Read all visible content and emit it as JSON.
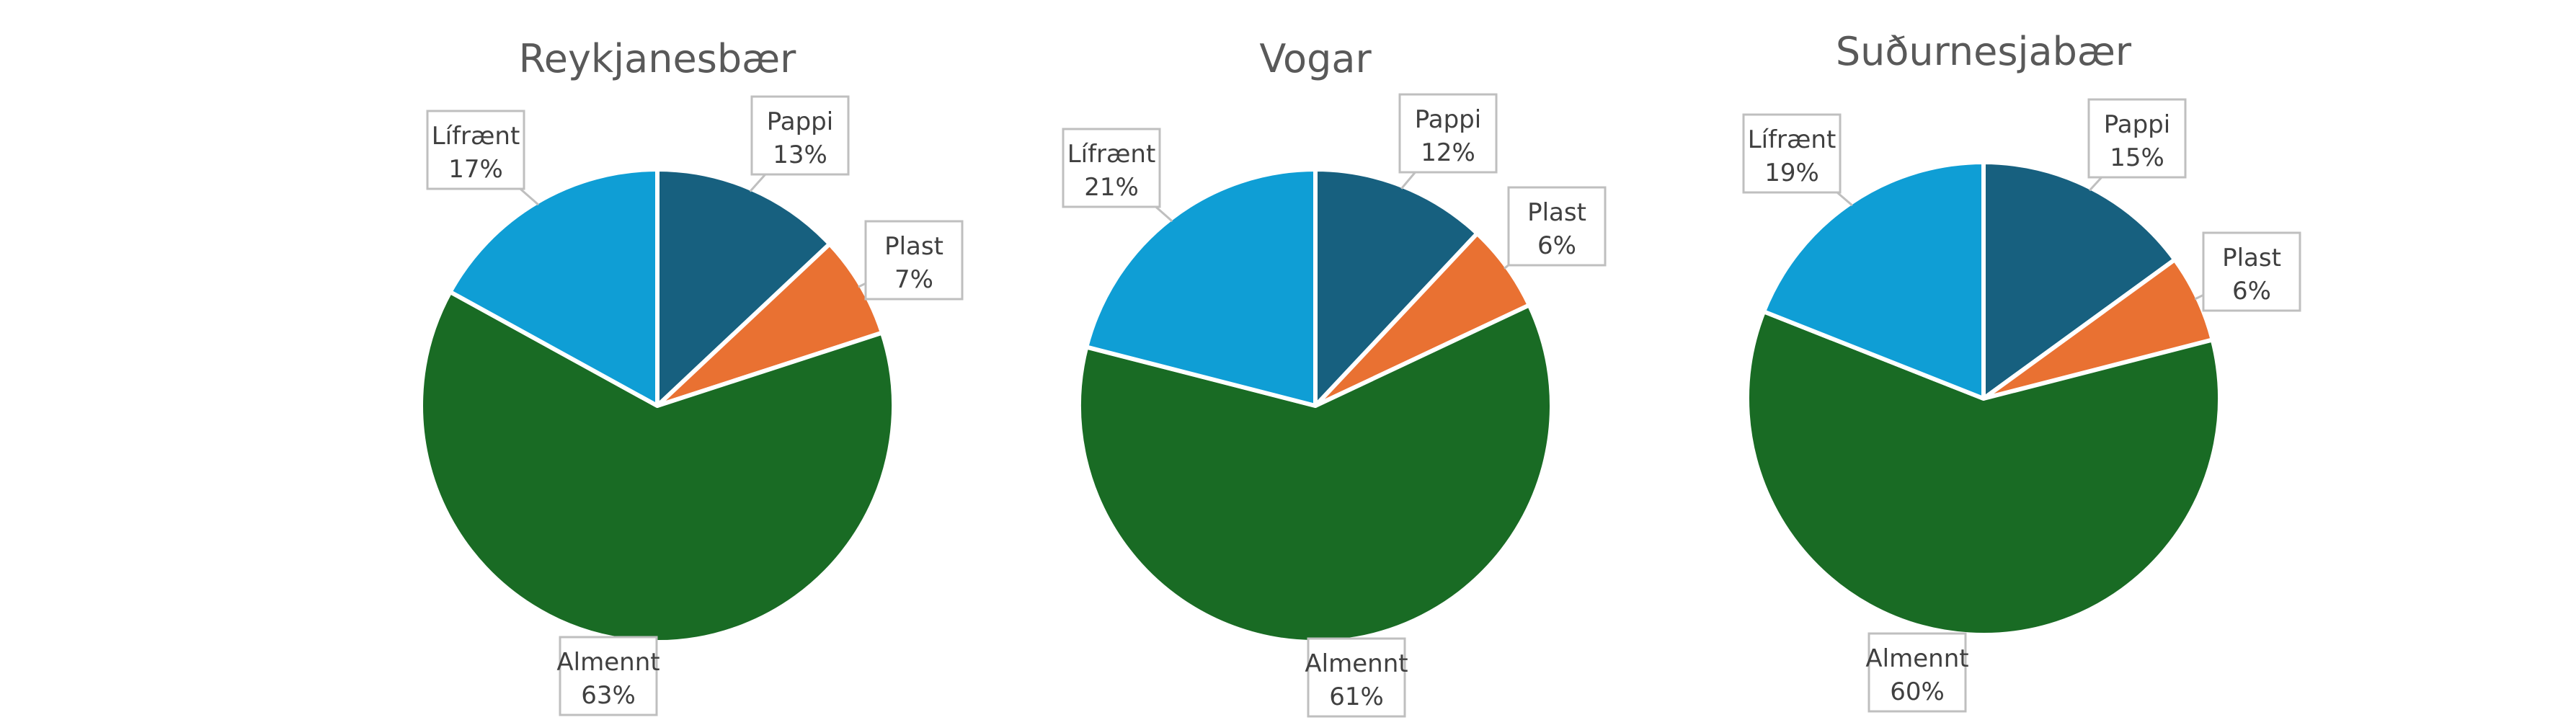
{
  "chart_data": [
    {
      "type": "pie",
      "title": "Reykjanesbær",
      "slices": [
        {
          "label": "Pappi",
          "value": 13,
          "value_label": "13%",
          "color": "#17607f"
        },
        {
          "label": "Plast",
          "value": 7,
          "value_label": "7%",
          "color": "#e97132"
        },
        {
          "label": "Almennt",
          "value": 63,
          "value_label": "63%",
          "color": "#196b24"
        },
        {
          "label": "Lífrænt",
          "value": 17,
          "value_label": "17%",
          "color": "#0f9ed5"
        }
      ]
    },
    {
      "type": "pie",
      "title": "Vogar",
      "slices": [
        {
          "label": "Pappi",
          "value": 12,
          "value_label": "12%",
          "color": "#17607f"
        },
        {
          "label": "Plast",
          "value": 6,
          "value_label": "6%",
          "color": "#e97132"
        },
        {
          "label": "Almennt",
          "value": 61,
          "value_label": "61%",
          "color": "#196b24"
        },
        {
          "label": "Lífrænt",
          "value": 21,
          "value_label": "21%",
          "color": "#0f9ed5"
        }
      ]
    },
    {
      "type": "pie",
      "title": "Suðurnesjabær",
      "slices": [
        {
          "label": "Pappi",
          "value": 15,
          "value_label": "15%",
          "color": "#17607f"
        },
        {
          "label": "Plast",
          "value": 6,
          "value_label": "6%",
          "color": "#e97132"
        },
        {
          "label": "Almennt",
          "value": 60,
          "value_label": "60%",
          "color": "#196b24"
        },
        {
          "label": "Lífrænt",
          "value": 19,
          "value_label": "19%",
          "color": "#0f9ed5"
        }
      ]
    }
  ]
}
